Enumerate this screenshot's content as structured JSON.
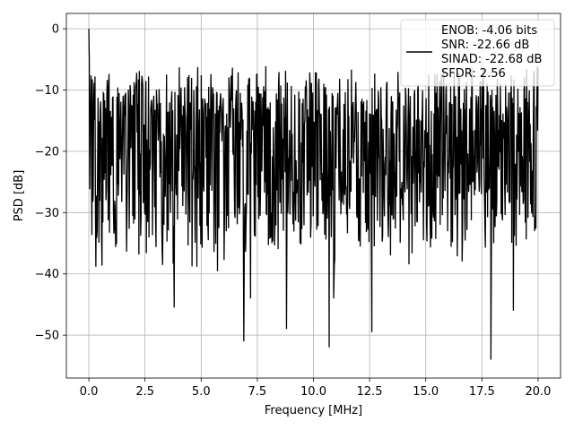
{
  "chart_data": {
    "type": "line",
    "xlabel": "Frequency [MHz]",
    "ylabel": "PSD [dB]",
    "xlim": [
      -1.0,
      21.0
    ],
    "ylim": [
      -57.0,
      2.5
    ],
    "xticks": [
      0.0,
      2.5,
      5.0,
      7.5,
      10.0,
      12.5,
      15.0,
      17.5,
      20.0
    ],
    "xtick_labels": [
      "0.0",
      "2.5",
      "5.0",
      "7.5",
      "10.0",
      "12.5",
      "15.0",
      "17.5",
      "20.0"
    ],
    "yticks": [
      0,
      -10,
      -20,
      -30,
      -40,
      -50
    ],
    "ytick_labels": [
      "0",
      "−10",
      "−20",
      "−30",
      "−40",
      "−50"
    ],
    "grid": true,
    "legend_position": "top-right",
    "line_color": "#000000",
    "legend_lines": [
      "ENOB: -4.06 bits",
      "SNR: -22.66 dB",
      "SINAD: -22.68 dB",
      "SFDR: 2.56"
    ],
    "series": [
      {
        "x_range": [
          0.0,
          20.0
        ],
        "points": 1024,
        "envelope_upper_db": -9,
        "envelope_lower_db": -35,
        "median_db": -20,
        "peaks": [
          {
            "x": 0.0,
            "y": 0
          },
          {
            "x": 0.02,
            "y": -5
          }
        ],
        "dips": [
          {
            "x": 3.8,
            "y": -45.5
          },
          {
            "x": 6.9,
            "y": -51
          },
          {
            "x": 7.2,
            "y": -44
          },
          {
            "x": 8.8,
            "y": -49
          },
          {
            "x": 10.7,
            "y": -52
          },
          {
            "x": 10.9,
            "y": -44
          },
          {
            "x": 12.6,
            "y": -49.5
          },
          {
            "x": 17.9,
            "y": -54
          },
          {
            "x": 18.9,
            "y": -46
          }
        ]
      }
    ]
  }
}
